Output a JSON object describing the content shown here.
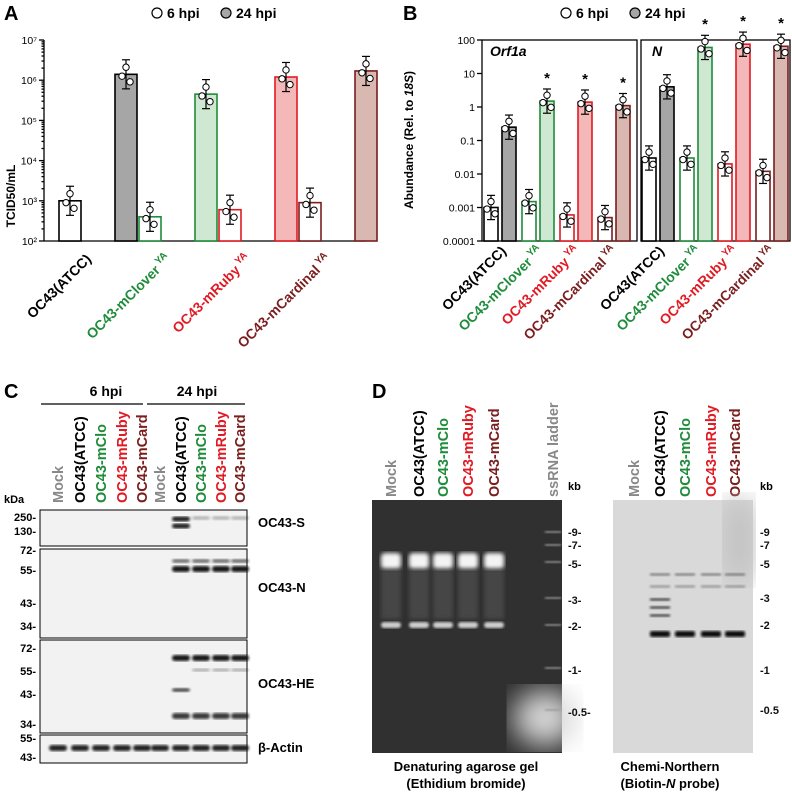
{
  "colors": {
    "atcc": "#000000",
    "clover": "#1e8c3a",
    "ruby": "#e01b24",
    "cardinal": "#7a1e1e",
    "mock": "#888888",
    "ladder": "#888888",
    "bar_6": "#ffffff",
    "bar_24_atcc": "#a6a6a6",
    "clover_fill": "#cfe8d2",
    "ruby_fill": "#f4b8b8",
    "cardinal_fill": "#d8b8b0"
  },
  "panelA": {
    "letter": "A",
    "legend": [
      "6 hpi",
      "24 hpi"
    ],
    "ylabel": "TCID50/mL",
    "yticks": [
      "10²",
      "10³",
      "10⁴",
      "10⁵",
      "10⁶",
      "10⁷"
    ],
    "strains": [
      {
        "base": "OC43(ATCC)",
        "sup": ""
      },
      {
        "base": "OC43-mClover",
        "sup": "YA"
      },
      {
        "base": "OC43-mRuby",
        "sup": "YA"
      },
      {
        "base": "OC43-mCardinal",
        "sup": "YA"
      }
    ]
  },
  "panelB": {
    "letter": "B",
    "legend": [
      "6 hpi",
      "24 hpi"
    ],
    "ylabel_pre": "Abundance (Rel. to ",
    "ylabel_ital": "18S",
    "ylabel_post": ")",
    "yticks": [
      "0.0001",
      "0.001",
      "0.01",
      "0.1",
      "1",
      "10",
      "100"
    ],
    "sub1": "Orf1a",
    "sub2": "N",
    "star": "*",
    "strains": [
      {
        "base": "OC43(ATCC)",
        "sup": ""
      },
      {
        "base": "OC43-mClover",
        "sup": "YA"
      },
      {
        "base": "OC43-mRuby",
        "sup": "YA"
      },
      {
        "base": "OC43-mCardinal",
        "sup": "YA"
      }
    ]
  },
  "chart_data": [
    {
      "type": "bar",
      "title": "",
      "ylabel": "TCID50/mL",
      "yscale": "log",
      "ylim": [
        100,
        10000000
      ],
      "categories": [
        "OC43(ATCC)",
        "OC43-mClover YA",
        "OC43-mRuby YA",
        "OC43-mCardinal YA"
      ],
      "series": [
        {
          "name": "6 hpi",
          "values": [
            1000,
            400,
            600,
            900
          ]
        },
        {
          "name": "24 hpi",
          "values": [
            1400000,
            450000,
            1200000,
            1700000
          ]
        }
      ]
    },
    {
      "type": "bar",
      "title": "Orf1a",
      "ylabel": "Abundance (Rel. to 18S)",
      "yscale": "log",
      "ylim": [
        0.0001,
        100
      ],
      "categories": [
        "OC43(ATCC)",
        "OC43-mClover YA",
        "OC43-mRuby YA",
        "OC43-mCardinal YA"
      ],
      "series": [
        {
          "name": "6 hpi",
          "values": [
            0.001,
            0.0015,
            0.0006,
            0.0005
          ]
        },
        {
          "name": "24 hpi",
          "values": [
            0.25,
            1.5,
            1.4,
            1.1
          ]
        }
      ]
    },
    {
      "type": "bar",
      "title": "N",
      "ylabel": "Abundance (Rel. to 18S)",
      "yscale": "log",
      "ylim": [
        0.0001,
        100
      ],
      "categories": [
        "OC43(ATCC)",
        "OC43-mClover YA",
        "OC43-mRuby YA",
        "OC43-mCardinal YA"
      ],
      "series": [
        {
          "name": "6 hpi",
          "values": [
            0.03,
            0.03,
            0.02,
            0.012
          ]
        },
        {
          "name": "24 hpi",
          "values": [
            4,
            60,
            75,
            65
          ]
        }
      ]
    }
  ],
  "panelC": {
    "letter": "C",
    "group1": "6 hpi",
    "group2": "24 hpi",
    "lanes": [
      {
        "label": "Mock",
        "c": "mock"
      },
      {
        "label": "OC43(ATCC)",
        "c": "atcc"
      },
      {
        "label": "OC43-mClo",
        "c": "clover"
      },
      {
        "label": "OC43-mRuby",
        "c": "ruby"
      },
      {
        "label": "OC43-mCard",
        "c": "cardinal"
      },
      {
        "label": "Mock",
        "c": "mock"
      },
      {
        "label": "OC43(ATCC)",
        "c": "atcc"
      },
      {
        "label": "OC43-mClo",
        "c": "clover"
      },
      {
        "label": "OC43-mRuby",
        "c": "ruby"
      },
      {
        "label": "OC43-mCard",
        "c": "cardinal"
      }
    ],
    "kda": "kDa",
    "blots": [
      {
        "name": "OC43-S",
        "markers": [
          "250-",
          "130-"
        ]
      },
      {
        "name": "OC43-N",
        "markers": [
          "72-",
          "55-",
          "43-",
          "34-"
        ]
      },
      {
        "name": "OC43-HE",
        "markers": [
          "72-",
          "55-",
          "43-",
          "34-"
        ]
      },
      {
        "name": "β-Actin",
        "markers": [
          "55-",
          "43-"
        ]
      }
    ]
  },
  "panelD": {
    "letter": "D",
    "gel_lanes": [
      {
        "label": "Mock",
        "c": "mock"
      },
      {
        "label": "OC43(ATCC)",
        "c": "atcc"
      },
      {
        "label": "OC43-mClo",
        "c": "clover"
      },
      {
        "label": "OC43-mRuby",
        "c": "ruby"
      },
      {
        "label": "OC43-mCard",
        "c": "cardinal"
      },
      {
        "label": "ssRNA ladder",
        "c": "ladder"
      }
    ],
    "north_lanes": [
      {
        "label": "Mock",
        "c": "mock"
      },
      {
        "label": "OC43(ATCC)",
        "c": "atcc"
      },
      {
        "label": "OC43-mClo",
        "c": "clover"
      },
      {
        "label": "OC43-mRuby",
        "c": "ruby"
      },
      {
        "label": "OC43-mCard",
        "c": "cardinal"
      }
    ],
    "kb": "kb",
    "gel_markers": [
      "-9-",
      "-7-",
      "-5-",
      "-3-",
      "-2-",
      "-1-",
      "-0.5-"
    ],
    "north_markers": [
      "-9",
      "-7",
      "-5",
      "-3",
      "-2",
      "-1",
      "-0.5"
    ],
    "gel_caption1": "Denaturing agarose gel",
    "gel_caption2": "(Ethidium bromide)",
    "north_caption1": "Chemi-Northern",
    "north_caption2_pre": "(Biotin-",
    "north_caption2_ital": "N",
    "north_caption2_post": " probe)"
  }
}
